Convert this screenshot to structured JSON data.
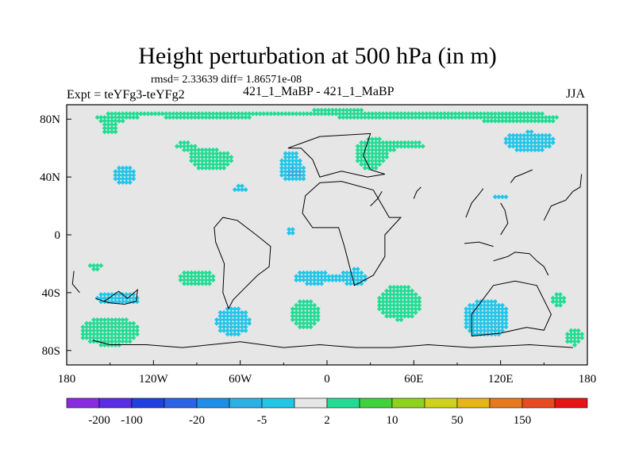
{
  "header": {
    "title": "Height perturbation at 500 hPa (in m)",
    "stats": "rmsd= 2.33639 diff= 1.86571e-08",
    "expt": "Expt = teYFg3-teYFg2",
    "runs": "421_1_MaBP - 421_1_MaBP",
    "season": "JJA"
  },
  "chart_data": {
    "type": "heatmap",
    "title": "Height perturbation at 500 hPa (in m)",
    "subtitle": "421_1_MaBP - 421_1_MaBP",
    "variable": "500 hPa height difference",
    "units": "m",
    "xlim": [
      -180,
      180
    ],
    "ylim": [
      -90,
      90
    ],
    "x_ticks": [
      {
        "value": -180,
        "label": "180"
      },
      {
        "value": -120,
        "label": "120W"
      },
      {
        "value": -60,
        "label": "60W"
      },
      {
        "value": 0,
        "label": "0"
      },
      {
        "value": 60,
        "label": "60E"
      },
      {
        "value": 120,
        "label": "120E"
      },
      {
        "value": 180,
        "label": "180"
      }
    ],
    "y_ticks": [
      {
        "value": 80,
        "label": "80N"
      },
      {
        "value": 40,
        "label": "40N"
      },
      {
        "value": 0,
        "label": "0"
      },
      {
        "value": -40,
        "label": "40S"
      },
      {
        "value": -80,
        "label": "80S"
      }
    ],
    "colorbar": {
      "levels": [
        -200,
        -100,
        -50,
        -20,
        -10,
        -5,
        -2,
        2,
        5,
        10,
        20,
        50,
        100,
        150,
        200
      ],
      "labels": [
        "-200",
        "-100",
        "-20",
        "-5",
        "2",
        "10",
        "50",
        "150"
      ],
      "label_level_index": [
        0,
        1,
        3,
        5,
        7,
        9,
        11,
        13
      ],
      "colors": [
        "#8a2be2",
        "#5a2ee6",
        "#2040e0",
        "#2a63e6",
        "#1e8ee6",
        "#2bb0e6",
        "#22c6e8",
        "#e6e6e6",
        "#22dc94",
        "#3fd23a",
        "#8fd21e",
        "#cfd21a",
        "#e6b414",
        "#e6781e",
        "#e64a1e",
        "#e61414"
      ]
    },
    "anomalies": [
      {
        "lon": -150,
        "lat": 72,
        "rlon": 20,
        "rlat": 12,
        "value": 2.2
      },
      {
        "lon": -100,
        "lat": 83,
        "rlon": 80,
        "rlat": 6,
        "value": 2.2
      },
      {
        "lon": 10,
        "lat": 84,
        "rlon": 80,
        "rlat": 6,
        "value": 2.2
      },
      {
        "lon": 110,
        "lat": 82,
        "rlon": 70,
        "rlat": 6,
        "value": 2.2
      },
      {
        "lon": -140,
        "lat": 42,
        "rlon": 12,
        "rlat": 10,
        "value": -3.5
      },
      {
        "lon": -80,
        "lat": 52,
        "rlon": 20,
        "rlat": 10,
        "value": 4
      },
      {
        "lon": -100,
        "lat": 62,
        "rlon": 14,
        "rlat": 6,
        "value": 2.2
      },
      {
        "lon": -25,
        "lat": 50,
        "rlon": 10,
        "rlat": 12,
        "value": -3.5
      },
      {
        "lon": -22,
        "lat": 42,
        "rlon": 8,
        "rlat": 5,
        "value": -6
      },
      {
        "lon": 30,
        "lat": 55,
        "rlon": 16,
        "rlat": 16,
        "value": 3.2
      },
      {
        "lon": 60,
        "lat": 62,
        "rlon": 30,
        "rlat": 8,
        "value": 2.2
      },
      {
        "lon": 140,
        "lat": 65,
        "rlon": 28,
        "rlat": 12,
        "value": -3.5
      },
      {
        "lon": 140,
        "lat": 78,
        "rlon": 30,
        "rlat": 6,
        "value": 2.2
      },
      {
        "lon": -60,
        "lat": 32,
        "rlon": 7,
        "rlat": 6,
        "value": -3
      },
      {
        "lon": 120,
        "lat": 27,
        "rlon": 14,
        "rlat": 4,
        "value": -2.5
      },
      {
        "lon": -160,
        "lat": -22,
        "rlon": 18,
        "rlat": 8,
        "value": 2.2
      },
      {
        "lon": -90,
        "lat": -30,
        "rlon": 20,
        "rlat": 10,
        "value": 3.2
      },
      {
        "lon": -145,
        "lat": -44,
        "rlon": 25,
        "rlat": 8,
        "value": -3.5
      },
      {
        "lon": -150,
        "lat": -67,
        "rlon": 28,
        "rlat": 14,
        "value": 4
      },
      {
        "lon": -65,
        "lat": -60,
        "rlon": 16,
        "rlat": 14,
        "value": -4
      },
      {
        "lon": -10,
        "lat": -30,
        "rlon": 20,
        "rlat": 8,
        "value": -3.5
      },
      {
        "lon": 20,
        "lat": -30,
        "rlon": 12,
        "rlat": 10,
        "value": -3.5
      },
      {
        "lon": -15,
        "lat": -55,
        "rlon": 18,
        "rlat": 16,
        "value": 3.2
      },
      {
        "lon": 50,
        "lat": -47,
        "rlon": 24,
        "rlat": 18,
        "value": 3.5
      },
      {
        "lon": 110,
        "lat": -58,
        "rlon": 25,
        "rlat": 20,
        "value": -3.5
      },
      {
        "lon": 160,
        "lat": -45,
        "rlon": 20,
        "rlat": 16,
        "value": 2.2
      },
      {
        "lon": 170,
        "lat": -72,
        "rlon": 12,
        "rlat": 12,
        "value": 2.2
      },
      {
        "lon": -25,
        "lat": 3,
        "rlon": 4,
        "rlat": 6,
        "value": -3
      }
    ],
    "coastline": [
      [
        [
          -175,
          -25
        ],
        [
          -176,
          -34
        ],
        [
          -171,
          -40
        ]
      ],
      [
        [
          -160,
          -44
        ],
        [
          -154,
          -46
        ],
        [
          -144,
          -39
        ],
        [
          -138,
          -44
        ],
        [
          -131,
          -38
        ],
        [
          -132,
          -46
        ],
        [
          -140,
          -48
        ],
        [
          -151,
          -47
        ],
        [
          -160,
          -44
        ]
      ],
      [
        [
          -162,
          -73
        ],
        [
          -150,
          -76
        ],
        [
          -125,
          -76
        ],
        [
          -100,
          -78
        ],
        [
          -60,
          -74
        ],
        [
          -30,
          -78
        ],
        [
          -5,
          -76
        ],
        [
          20,
          -78
        ],
        [
          45,
          -78
        ],
        [
          70,
          -76
        ],
        [
          100,
          -78
        ],
        [
          140,
          -76
        ],
        [
          170,
          -78
        ]
      ],
      [
        [
          -68,
          -51
        ],
        [
          -72,
          -40
        ],
        [
          -71,
          -20
        ],
        [
          -77,
          -5
        ],
        [
          -78,
          5
        ],
        [
          -72,
          12
        ],
        [
          -62,
          10
        ],
        [
          -49,
          0
        ],
        [
          -39,
          -8
        ],
        [
          -40,
          -22
        ],
        [
          -48,
          -28
        ],
        [
          -58,
          -38
        ],
        [
          -65,
          -45
        ],
        [
          -68,
          -51
        ]
      ],
      [
        [
          -17,
          15
        ],
        [
          -10,
          5
        ],
        [
          8,
          5
        ],
        [
          12,
          -8
        ],
        [
          19,
          -35
        ],
        [
          32,
          -28
        ],
        [
          40,
          -15
        ],
        [
          40,
          0
        ],
        [
          51,
          12
        ],
        [
          43,
          12
        ],
        [
          32,
          31
        ],
        [
          10,
          37
        ],
        [
          -5,
          36
        ],
        [
          -15,
          27
        ],
        [
          -17,
          15
        ]
      ],
      [
        [
          -27,
          60
        ],
        [
          -18,
          60
        ],
        [
          -10,
          52
        ],
        [
          -5,
          40
        ],
        [
          10,
          44
        ],
        [
          28,
          40
        ],
        [
          40,
          42
        ],
        [
          30,
          45
        ],
        [
          25,
          55
        ],
        [
          30,
          70
        ],
        [
          -5,
          68
        ],
        [
          -27,
          60
        ]
      ],
      [
        [
          100,
          -70
        ],
        [
          120,
          -68
        ],
        [
          138,
          -64
        ],
        [
          150,
          -66
        ],
        [
          155,
          -55
        ],
        [
          145,
          -35
        ],
        [
          130,
          -32
        ],
        [
          115,
          -35
        ],
        [
          100,
          -55
        ],
        [
          100,
          -70
        ]
      ],
      [
        [
          115,
          -18
        ],
        [
          125,
          -15
        ],
        [
          130,
          -12
        ],
        [
          140,
          -13
        ],
        [
          145,
          -18
        ],
        [
          150,
          -22
        ],
        [
          153,
          -28
        ]
      ],
      [
        [
          95,
          -6
        ],
        [
          105,
          -5
        ],
        [
          115,
          -8
        ]
      ],
      [
        [
          120,
          0
        ],
        [
          125,
          8
        ],
        [
          123,
          17
        ],
        [
          120,
          22
        ]
      ],
      [
        [
          127,
          36
        ],
        [
          130,
          40
        ],
        [
          135,
          42
        ],
        [
          142,
          45
        ]
      ],
      [
        [
          150,
          10
        ],
        [
          155,
          20
        ],
        [
          160,
          22
        ],
        [
          165,
          24
        ],
        [
          170,
          30
        ],
        [
          175,
          33
        ],
        [
          176,
          42
        ]
      ],
      [
        [
          96,
          12
        ],
        [
          100,
          22
        ],
        [
          105,
          28
        ],
        [
          108,
          32
        ]
      ],
      [
        [
          30,
          20
        ],
        [
          35,
          25
        ],
        [
          38,
          30
        ]
      ],
      [
        [
          60,
          25
        ],
        [
          62,
          30
        ],
        [
          65,
          33
        ]
      ]
    ]
  }
}
